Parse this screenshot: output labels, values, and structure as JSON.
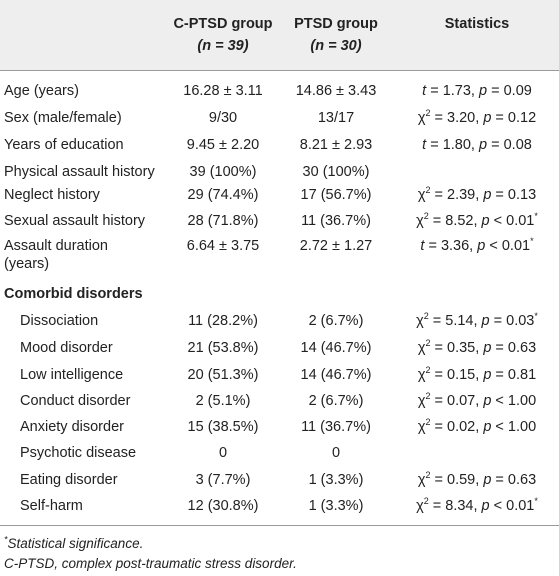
{
  "header": {
    "col0": "",
    "col1_line1": "C-PTSD group",
    "col1_n": "(n = 39)",
    "col2_line1": "PTSD group",
    "col2_n": "(n = 30)",
    "col3": "Statistics"
  },
  "rows": [
    {
      "label": "Age (years)",
      "cptsd": "16.28 ± 3.11",
      "ptsd": "14.86 ± 3.43",
      "stat_var": "t",
      "stat_val": " = 1.73, ",
      "stat_p": "p = 0.09",
      "sig": ""
    },
    {
      "label": "Sex (male/female)",
      "cptsd": "9/30",
      "ptsd": "13/17",
      "stat_var": "χ",
      "stat_val": " = 3.20, ",
      "stat_p": "p = 0.12",
      "sig": ""
    },
    {
      "label": "Years of education",
      "cptsd": "9.45 ± 2.20",
      "ptsd": "8.21 ± 2.93",
      "stat_var": "t",
      "stat_val": " = 1.80, ",
      "stat_p": "p = 0.08",
      "sig": ""
    },
    {
      "label": "Physical assault history",
      "cptsd": "39 (100%)",
      "ptsd": "30 (100%)",
      "stat_var": "",
      "stat_val": "",
      "stat_p": "",
      "sig": ""
    },
    {
      "label": "Neglect history",
      "cptsd": "29 (74.4%)",
      "ptsd": "17 (56.7%)",
      "stat_var": "χ",
      "stat_val": " = 2.39, ",
      "stat_p": "p = 0.13",
      "sig": ""
    },
    {
      "label": "Sexual assault history",
      "cptsd": "28 (71.8%)",
      "ptsd": "11 (36.7%)",
      "stat_var": "χ",
      "stat_val": " = 8.52, ",
      "stat_p": "p < 0.01",
      "sig": "*"
    },
    {
      "label": "Assault duration",
      "label2": "(years)",
      "cptsd": "6.64 ± 3.75",
      "ptsd": "2.72 ± 1.27",
      "stat_var": "t",
      "stat_val": " = 3.36, ",
      "stat_p": "p < 0.01",
      "sig": "*"
    }
  ],
  "section_title": "Comorbid disorders",
  "comorbid": [
    {
      "label": "Dissociation",
      "cptsd": "11 (28.2%)",
      "ptsd": "2 (6.7%)",
      "stat_var": "χ",
      "stat_val": " = 5.14, ",
      "stat_p": "p = 0.03",
      "sig": "*"
    },
    {
      "label": "Mood disorder",
      "cptsd": "21 (53.8%)",
      "ptsd": "14 (46.7%)",
      "stat_var": "χ",
      "stat_val": " = 0.35, ",
      "stat_p": "p = 0.63",
      "sig": ""
    },
    {
      "label": "Low intelligence",
      "cptsd": "20 (51.3%)",
      "ptsd": "14 (46.7%)",
      "stat_var": "χ",
      "stat_val": " = 0.15, ",
      "stat_p": "p = 0.81",
      "sig": ""
    },
    {
      "label": "Conduct disorder",
      "cptsd": "2 (5.1%)",
      "ptsd": "2 (6.7%)",
      "stat_var": "χ",
      "stat_val": " = 0.07, ",
      "stat_p": "p < 1.00",
      "sig": ""
    },
    {
      "label": "Anxiety disorder",
      "cptsd": "15 (38.5%)",
      "ptsd": "11 (36.7%)",
      "stat_var": "χ",
      "stat_val": " = 0.02, ",
      "stat_p": "p < 1.00",
      "sig": ""
    },
    {
      "label": "Psychotic disease",
      "cptsd": "0",
      "ptsd": "0",
      "stat_var": "",
      "stat_val": "",
      "stat_p": "",
      "sig": ""
    },
    {
      "label": "Eating disorder",
      "cptsd": "3 (7.7%)",
      "ptsd": "1 (3.3%)",
      "stat_var": "χ",
      "stat_val": " = 0.59, ",
      "stat_p": "p = 0.63",
      "sig": ""
    },
    {
      "label": "Self-harm",
      "cptsd": "12 (30.8%)",
      "ptsd": "1 (3.3%)",
      "stat_var": "χ",
      "stat_val": " = 8.34, ",
      "stat_p": "p < 0.01",
      "sig": "*"
    }
  ],
  "chi_sup": "2",
  "footnotes": {
    "sig_mark": "*",
    "sig_text": "Statistical significance.",
    "abbrev": "C-PTSD, complex post-traumatic stress disorder."
  }
}
